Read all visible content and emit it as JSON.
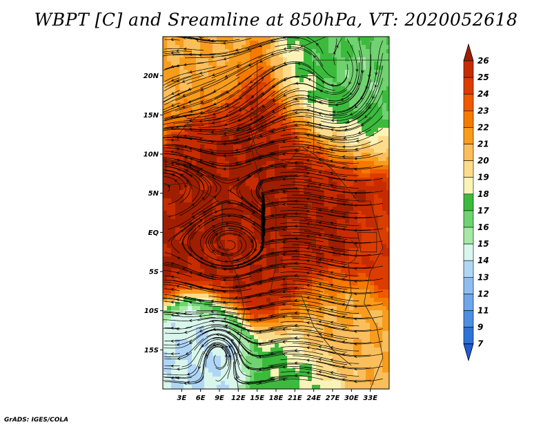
{
  "title": "WBPT [C] and Sreamline at 850hPa, VT: 2020052618",
  "credit": "GrADS: IGES/COLA",
  "map": {
    "lon_range": [
      0,
      36
    ],
    "lat_range": [
      -20,
      25
    ],
    "lat_ticks": [
      {
        "value": 20,
        "label": "20N"
      },
      {
        "value": 15,
        "label": "15N"
      },
      {
        "value": 10,
        "label": "10N"
      },
      {
        "value": 5,
        "label": "5N"
      },
      {
        "value": 0,
        "label": "EQ"
      },
      {
        "value": -5,
        "label": "5S"
      },
      {
        "value": -10,
        "label": "10S"
      },
      {
        "value": -15,
        "label": "15S"
      }
    ],
    "lon_ticks": [
      {
        "value": 3,
        "label": "3E"
      },
      {
        "value": 6,
        "label": "6E"
      },
      {
        "value": 9,
        "label": "9E"
      },
      {
        "value": 12,
        "label": "12E"
      },
      {
        "value": 15,
        "label": "15E"
      },
      {
        "value": 18,
        "label": "18E"
      },
      {
        "value": 21,
        "label": "21E"
      },
      {
        "value": 24,
        "label": "24E"
      },
      {
        "value": 27,
        "label": "27E"
      },
      {
        "value": 30,
        "label": "30E"
      },
      {
        "value": 33,
        "label": "33E"
      }
    ],
    "field_centers": [
      {
        "lon": 7,
        "lat": 9,
        "value": 25.2,
        "spread": 5
      },
      {
        "lon": 20,
        "lat": 4,
        "value": 25.3,
        "spread": 9
      },
      {
        "lon": 16,
        "lat": -5,
        "value": 24.8,
        "spread": 5
      },
      {
        "lon": 28,
        "lat": 17,
        "value": 16.0,
        "spread": 6
      },
      {
        "lon": 31,
        "lat": 19,
        "value": 14.8,
        "spread": 3
      },
      {
        "lon": 9,
        "lat": -15,
        "value": 13.0,
        "spread": 4
      },
      {
        "lon": 3,
        "lat": 21,
        "value": 20.0,
        "spread": 6
      },
      {
        "lon": 20,
        "lat": -18,
        "value": 16.5,
        "spread": 5
      },
      {
        "lon": 26,
        "lat": -12,
        "value": 19.8,
        "spread": 5
      },
      {
        "lon": 34,
        "lat": -1,
        "value": 23.5,
        "spread": 3
      }
    ]
  },
  "colorbar": {
    "levels": [
      {
        "label": "26",
        "color": "#a01e00"
      },
      {
        "label": "25",
        "color": "#c62c00"
      },
      {
        "label": "24",
        "color": "#dc3c00"
      },
      {
        "label": "23",
        "color": "#ee5a00"
      },
      {
        "label": "22",
        "color": "#f57a00"
      },
      {
        "label": "21",
        "color": "#f89c1e"
      },
      {
        "label": "20",
        "color": "#fabe5c"
      },
      {
        "label": "19",
        "color": "#fcdc8a"
      },
      {
        "label": "18",
        "color": "#f9f3b8"
      },
      {
        "label": "17",
        "color": "#3cba3c"
      },
      {
        "label": "16",
        "color": "#70d270"
      },
      {
        "label": "15",
        "color": "#a6e8a6"
      },
      {
        "label": "14",
        "color": "#d8f6ec"
      },
      {
        "label": "13",
        "color": "#b0d6f6"
      },
      {
        "label": "12",
        "color": "#8ebeef"
      },
      {
        "label": "11",
        "color": "#6ea6e8"
      },
      {
        "label": "9",
        "color": "#4e8ee0"
      },
      {
        "label": "7",
        "color": "#2f72d6"
      }
    ],
    "under_color": "#1e5cd0"
  }
}
